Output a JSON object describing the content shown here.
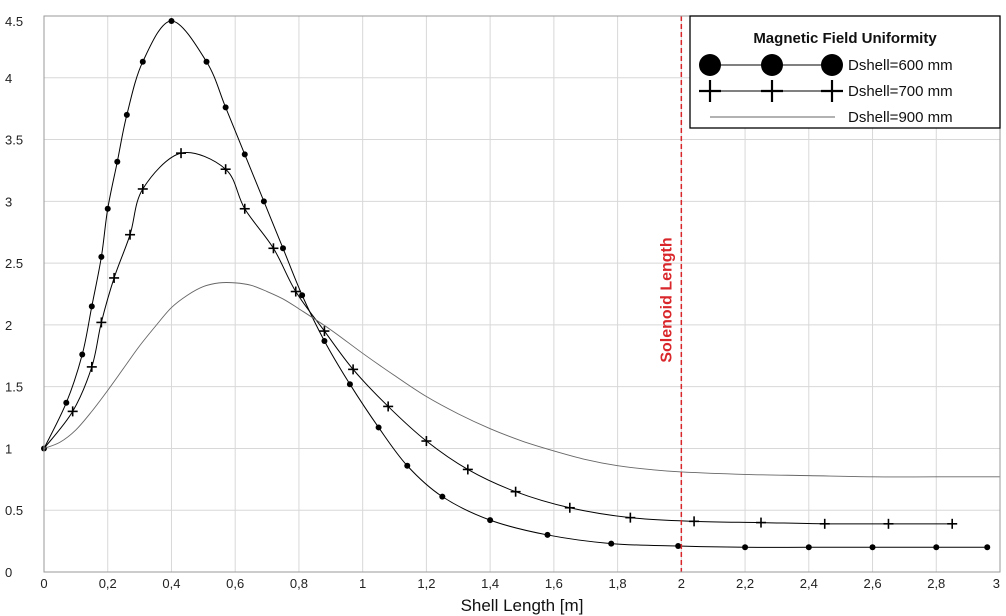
{
  "chart_data": {
    "type": "line",
    "xlabel": "Shell Length [m]",
    "ylabel": "",
    "xlim": [
      0,
      3
    ],
    "ylim": [
      0,
      4.5
    ],
    "x_ticks": [
      0,
      0.2,
      0.4,
      0.6,
      0.8,
      1,
      1.2,
      1.4,
      1.6,
      1.8,
      2,
      2.2,
      2.4,
      2.6,
      2.8,
      3
    ],
    "x_tick_labels": [
      "0",
      "0,2",
      "0,4",
      "0,6",
      "0,8",
      "1",
      "1,2",
      "1,4",
      "1,6",
      "1,8",
      "2",
      "2,2",
      "2,4",
      "2,6",
      "2,8",
      "3"
    ],
    "y_ticks": [
      0,
      0.5,
      1,
      1.5,
      2,
      2.5,
      3,
      3.5,
      4,
      4.5
    ],
    "y_tick_labels": [
      "0",
      "0.5",
      "1",
      "1.5",
      "2",
      "2.5",
      "3",
      "3.5",
      "4",
      "4.5"
    ],
    "grid": true,
    "legend": {
      "title": "Magnetic Field Uniformity",
      "placement": "top-right"
    },
    "vertical_line": {
      "x": 2,
      "label": "Solenoid Length",
      "color": "#d9262a"
    },
    "series": [
      {
        "name": "Dshell=600 mm",
        "marker": "circle",
        "color": "#000000",
        "x": [
          0,
          0.07,
          0.12,
          0.15,
          0.18,
          0.2,
          0.23,
          0.26,
          0.31,
          0.4,
          0.51,
          0.57,
          0.63,
          0.69,
          0.75,
          0.81,
          0.88,
          0.96,
          1.05,
          1.14,
          1.25,
          1.4,
          1.58,
          1.78,
          1.99,
          2.2,
          2.4,
          2.6,
          2.8,
          2.96
        ],
        "y": [
          1.0,
          1.37,
          1.76,
          2.15,
          2.55,
          2.94,
          3.32,
          3.7,
          4.13,
          4.46,
          4.13,
          3.76,
          3.38,
          3.0,
          2.62,
          2.24,
          1.87,
          1.52,
          1.17,
          0.86,
          0.61,
          0.42,
          0.3,
          0.23,
          0.21,
          0.2,
          0.2,
          0.2,
          0.2,
          0.2
        ]
      },
      {
        "name": "Dshell=700 mm",
        "marker": "plus",
        "color": "#000000",
        "x": [
          0,
          0.09,
          0.15,
          0.18,
          0.22,
          0.27,
          0.31,
          0.43,
          0.57,
          0.63,
          0.72,
          0.79,
          0.88,
          0.97,
          1.08,
          1.2,
          1.33,
          1.48,
          1.65,
          1.84,
          2.04,
          2.25,
          2.45,
          2.65,
          2.85
        ],
        "y": [
          1.0,
          1.3,
          1.66,
          2.02,
          2.38,
          2.73,
          3.1,
          3.39,
          3.26,
          2.94,
          2.62,
          2.27,
          1.95,
          1.64,
          1.34,
          1.06,
          0.83,
          0.65,
          0.52,
          0.44,
          0.41,
          0.4,
          0.39,
          0.39,
          0.39
        ]
      },
      {
        "name": "Dshell=900 mm",
        "marker": "none",
        "color": "#666666",
        "x": [
          0,
          0.05,
          0.1,
          0.15,
          0.2,
          0.25,
          0.3,
          0.35,
          0.4,
          0.45,
          0.5,
          0.55,
          0.6,
          0.65,
          0.7,
          0.75,
          0.8,
          0.9,
          1.0,
          1.1,
          1.2,
          1.3,
          1.4,
          1.5,
          1.6,
          1.7,
          1.8,
          1.9,
          2.0,
          2.2,
          2.4,
          2.6,
          2.8,
          3.0
        ],
        "y": [
          1.0,
          1.05,
          1.15,
          1.3,
          1.47,
          1.65,
          1.83,
          1.99,
          2.14,
          2.24,
          2.31,
          2.34,
          2.34,
          2.32,
          2.27,
          2.21,
          2.13,
          1.96,
          1.77,
          1.59,
          1.42,
          1.28,
          1.16,
          1.06,
          0.98,
          0.91,
          0.86,
          0.83,
          0.81,
          0.79,
          0.78,
          0.77,
          0.77,
          0.77
        ]
      }
    ]
  }
}
